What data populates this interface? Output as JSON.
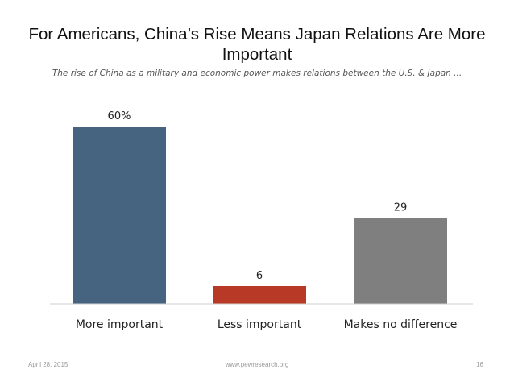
{
  "title": "For Americans, China’s Rise Means Japan Relations Are More Important",
  "subtitle": "The rise of China as a military and economic power makes relations between the U.S. & Japan ...",
  "chart_data": {
    "type": "bar",
    "categories": [
      "More important",
      "Less important",
      "Makes no difference"
    ],
    "values": [
      60,
      6,
      29
    ],
    "data_labels": [
      "60%",
      "6",
      "29"
    ],
    "colors": [
      "#466480",
      "#b83a26",
      "#7f7f7f"
    ],
    "ylim": [
      0,
      60
    ],
    "title": "For Americans, China’s Rise Means Japan Relations Are More Important",
    "xlabel": "",
    "ylabel": "",
    "grid": false
  },
  "footer": {
    "date": "April 28, 2015",
    "url": "www.pewresearch.org",
    "page": "16"
  }
}
